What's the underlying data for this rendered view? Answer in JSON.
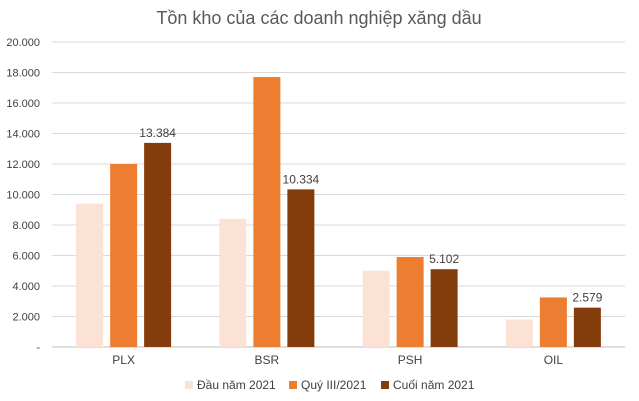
{
  "chart_data": {
    "type": "bar",
    "title": "Tồn kho của các doanh nghiệp xăng dầu",
    "categories": [
      "PLX",
      "BSR",
      "PSH",
      "OIL"
    ],
    "series": [
      {
        "name": "Đầu năm 2021",
        "color": "#fbe2d5",
        "values": [
          9400,
          8400,
          5000,
          1800
        ],
        "labels": [
          "",
          "",
          "",
          ""
        ]
      },
      {
        "name": "Quý III/2021",
        "color": "#ed7d31",
        "values": [
          12000,
          17700,
          5900,
          3250
        ],
        "labels": [
          "",
          "",
          "",
          ""
        ]
      },
      {
        "name": "Cuối năm 2021",
        "color": "#843c0c",
        "values": [
          13384,
          10334,
          5102,
          2579
        ],
        "labels": [
          "13.384",
          "10.334",
          "5.102",
          "2.579"
        ]
      }
    ],
    "ylim": [
      0,
      20000
    ],
    "yticks": [
      0,
      2000,
      4000,
      6000,
      8000,
      10000,
      12000,
      14000,
      16000,
      18000,
      20000
    ],
    "ytick_labels": [
      "-",
      "2.000",
      "4.000",
      "6.000",
      "8.000",
      "10.000",
      "12.000",
      "14.000",
      "16.000",
      "18.000",
      "20.000"
    ],
    "grid": true,
    "legend_position": "bottom"
  }
}
